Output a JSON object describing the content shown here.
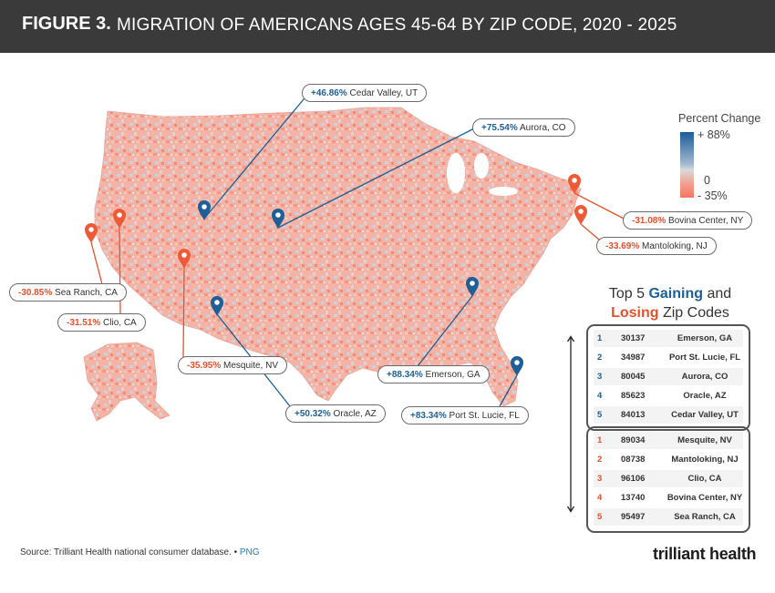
{
  "header": {
    "figure_label": "FIGURE 3.",
    "title": "MIGRATION OF AMERICANS AGES 45-64 BY ZIP CODE, 2020 - 2025"
  },
  "legend": {
    "title": "Percent Change",
    "max_label": "+ 88%",
    "mid_label": "0",
    "min_label": "- 35%",
    "colors": {
      "gain": "#1b5d99",
      "neutral": "#d9d9d9",
      "lose": "#f3765f"
    }
  },
  "callouts": [
    {
      "id": "cedar-valley",
      "type": "gain",
      "pct": "+46.86%",
      "place": "Cedar Valley, UT"
    },
    {
      "id": "aurora",
      "type": "gain",
      "pct": "+75.54%",
      "place": "Aurora, CO"
    },
    {
      "id": "bovina-center",
      "type": "lose",
      "pct": "-31.08%",
      "place": "Bovina Center, NY"
    },
    {
      "id": "mantoloking",
      "type": "lose",
      "pct": "-33.69%",
      "place": "Mantoloking, NJ"
    },
    {
      "id": "sea-ranch",
      "type": "lose",
      "pct": "-30.85%",
      "place": "Sea Ranch, CA"
    },
    {
      "id": "clio",
      "type": "lose",
      "pct": "-31.51%",
      "place": "Clio, CA"
    },
    {
      "id": "mesquite",
      "type": "lose",
      "pct": "-35.95%",
      "place": "Mesquite, NV"
    },
    {
      "id": "emerson",
      "type": "gain",
      "pct": "+88.34%",
      "place": "Emerson, GA"
    },
    {
      "id": "oracle",
      "type": "gain",
      "pct": "+50.32%",
      "place": "Oracle, AZ"
    },
    {
      "id": "port-st-lucie",
      "type": "gain",
      "pct": "+83.34%",
      "place": "Port St. Lucie, FL"
    }
  ],
  "top5": {
    "title_prefix": "Top 5 ",
    "title_gaining": "Gaining",
    "title_and": " and",
    "title_losing": "Losing",
    "title_suffix": " Zip Codes",
    "gaining": [
      {
        "rank": "1",
        "zip": "30137",
        "city": "Emerson, GA"
      },
      {
        "rank": "2",
        "zip": "34987",
        "city": "Port St. Lucie, FL"
      },
      {
        "rank": "3",
        "zip": "80045",
        "city": "Aurora, CO"
      },
      {
        "rank": "4",
        "zip": "85623",
        "city": "Oracle, AZ"
      },
      {
        "rank": "5",
        "zip": "84013",
        "city": "Cedar Valley, UT"
      }
    ],
    "losing": [
      {
        "rank": "1",
        "zip": "89034",
        "city": "Mesquite, NV"
      },
      {
        "rank": "2",
        "zip": "08738",
        "city": "Mantoloking, NJ"
      },
      {
        "rank": "3",
        "zip": "96106",
        "city": "Clio, CA"
      },
      {
        "rank": "4",
        "zip": "13740",
        "city": "Bovina Center, NY"
      },
      {
        "rank": "5",
        "zip": "95497",
        "city": "Sea Ranch, CA"
      }
    ]
  },
  "footer": {
    "source": "Source: Trilliant Health national consumer database.",
    "separator": "•",
    "png": "PNG",
    "logo": "trilliant health"
  }
}
